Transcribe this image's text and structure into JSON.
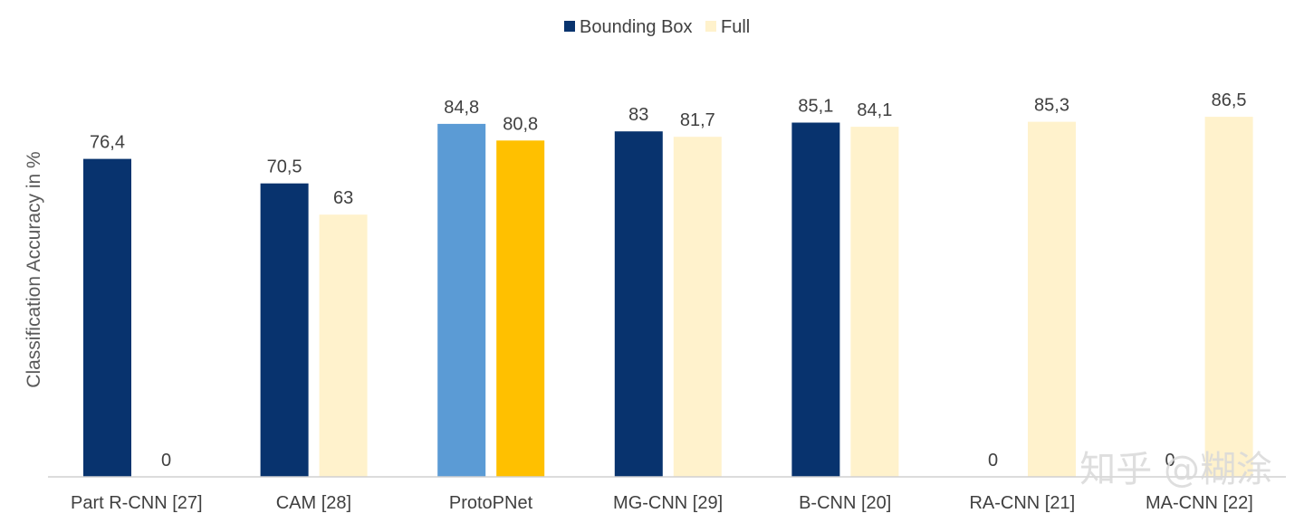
{
  "chart_data": {
    "type": "bar",
    "title": "",
    "xlabel": "",
    "ylabel": "Classification Accuracy in %",
    "ylim": [
      0,
      100
    ],
    "grid": false,
    "legend_position": "top-center",
    "categories": [
      "Part R-CNN [27]",
      "CAM [28]",
      "ProtoPNet",
      "MG-CNN [29]",
      "B-CNN [20]",
      "RA-CNN [21]",
      "MA-CNN [22]"
    ],
    "series": [
      {
        "name": "Bounding Box",
        "color": "#08336e",
        "values": [
          76.4,
          70.5,
          84.8,
          83,
          85.1,
          0,
          0
        ],
        "labels": [
          "76,4",
          "70,5",
          "84,8",
          "83",
          "85,1",
          "0",
          "0"
        ]
      },
      {
        "name": "Full",
        "color": "#fff2cc",
        "values": [
          0,
          63,
          80.8,
          81.7,
          84.1,
          85.3,
          86.5
        ],
        "labels": [
          "0",
          "63",
          "80,8",
          "81,7",
          "84,1",
          "85,3",
          "86,5"
        ]
      }
    ],
    "highlight": {
      "category_index": 2,
      "colors": [
        "#5b9bd5",
        "#ffc000"
      ]
    }
  },
  "watermark": "知乎 @糊涂"
}
